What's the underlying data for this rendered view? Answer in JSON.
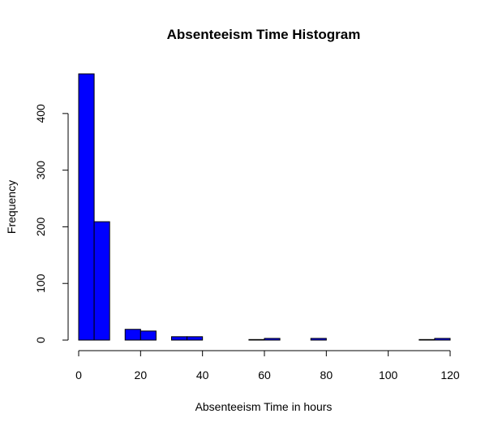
{
  "chart_data": {
    "type": "bar",
    "title": "Absenteeism Time Histogram",
    "xlabel": "Absenteeism Time in hours",
    "ylabel": "Frequency",
    "bar_color": "#0000ff",
    "bar_edge_color": "#000000",
    "bins": [
      {
        "start": 0,
        "end": 5,
        "count": 470
      },
      {
        "start": 5,
        "end": 10,
        "count": 209
      },
      {
        "start": 10,
        "end": 15,
        "count": 0
      },
      {
        "start": 15,
        "end": 20,
        "count": 19
      },
      {
        "start": 20,
        "end": 25,
        "count": 16
      },
      {
        "start": 25,
        "end": 30,
        "count": 0
      },
      {
        "start": 30,
        "end": 35,
        "count": 6
      },
      {
        "start": 35,
        "end": 40,
        "count": 6
      },
      {
        "start": 40,
        "end": 45,
        "count": 0
      },
      {
        "start": 45,
        "end": 50,
        "count": 0
      },
      {
        "start": 50,
        "end": 55,
        "count": 0
      },
      {
        "start": 55,
        "end": 60,
        "count": 1
      },
      {
        "start": 60,
        "end": 65,
        "count": 3
      },
      {
        "start": 65,
        "end": 70,
        "count": 0
      },
      {
        "start": 70,
        "end": 75,
        "count": 0
      },
      {
        "start": 75,
        "end": 80,
        "count": 3
      },
      {
        "start": 80,
        "end": 85,
        "count": 0
      },
      {
        "start": 85,
        "end": 90,
        "count": 0
      },
      {
        "start": 90,
        "end": 95,
        "count": 0
      },
      {
        "start": 95,
        "end": 100,
        "count": 0
      },
      {
        "start": 100,
        "end": 105,
        "count": 0
      },
      {
        "start": 105,
        "end": 110,
        "count": 0
      },
      {
        "start": 110,
        "end": 115,
        "count": 1
      },
      {
        "start": 115,
        "end": 120,
        "count": 3
      }
    ],
    "xlim": [
      0,
      120
    ],
    "ylim": [
      0,
      470
    ],
    "x_ticks": [
      0,
      20,
      40,
      60,
      80,
      100,
      120
    ],
    "y_ticks": [
      0,
      100,
      200,
      300,
      400
    ],
    "grid": false,
    "legend": "none"
  }
}
